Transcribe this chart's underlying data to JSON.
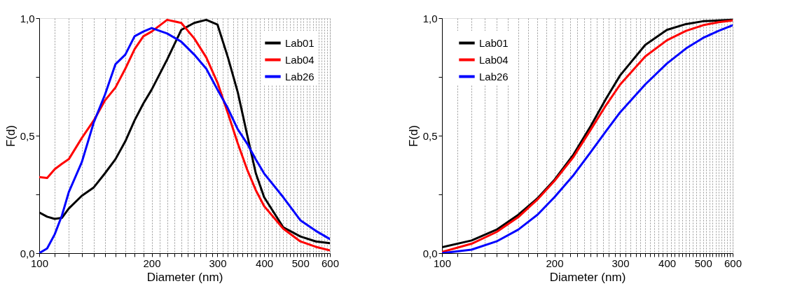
{
  "chart_data": [
    {
      "type": "line",
      "xlabel": "Diameter (nm)",
      "ylabel": "F(d)",
      "log": "x",
      "grid": "x",
      "legend": "top right",
      "marker": "none",
      "line_style": "solid",
      "xlim": [
        100,
        600
      ],
      "ylim": [
        0,
        1.0
      ],
      "xticks": [
        100,
        {
          "value": 110,
          "label": null
        },
        {
          "value": 120,
          "label": null
        },
        {
          "value": 130,
          "label": null
        },
        {
          "value": 140,
          "label": null
        },
        {
          "value": 150,
          "label": null
        },
        {
          "value": 160,
          "label": null
        },
        {
          "value": 170,
          "label": null
        },
        {
          "value": 180,
          "label": null
        },
        {
          "value": 190,
          "label": null
        },
        200,
        {
          "value": 210,
          "label": null
        },
        {
          "value": 220,
          "label": null
        },
        {
          "value": 230,
          "label": null
        },
        {
          "value": 240,
          "label": null
        },
        {
          "value": 250,
          "label": null
        },
        {
          "value": 260,
          "label": null
        },
        {
          "value": 270,
          "label": null
        },
        {
          "value": 280,
          "label": null
        },
        {
          "value": 290,
          "label": null
        },
        300,
        {
          "value": 310,
          "label": null
        },
        {
          "value": 320,
          "label": null
        },
        {
          "value": 330,
          "label": null
        },
        {
          "value": 340,
          "label": null
        },
        {
          "value": 350,
          "label": null
        },
        {
          "value": 360,
          "label": null
        },
        {
          "value": 370,
          "label": null
        },
        {
          "value": 380,
          "label": null
        },
        {
          "value": 390,
          "label": null
        },
        400,
        {
          "value": 410,
          "label": null
        },
        {
          "value": 420,
          "label": null
        },
        {
          "value": 430,
          "label": null
        },
        {
          "value": 440,
          "label": null
        },
        {
          "value": 450,
          "label": null
        },
        {
          "value": 460,
          "label": null
        },
        {
          "value": 470,
          "label": null
        },
        {
          "value": 480,
          "label": null
        },
        {
          "value": 490,
          "label": null
        },
        500,
        {
          "value": 510,
          "label": null
        },
        {
          "value": 520,
          "label": null
        },
        {
          "value": 530,
          "label": null
        },
        {
          "value": 540,
          "label": null
        },
        {
          "value": 550,
          "label": null
        },
        {
          "value": 560,
          "label": null
        },
        {
          "value": 570,
          "label": null
        },
        {
          "value": 580,
          "label": null
        },
        {
          "value": 590,
          "label": null
        },
        600
      ],
      "yticks": [
        {
          "value": 0,
          "label": "0,0"
        },
        {
          "value": 0.25,
          "label": null
        },
        {
          "value": 0.5,
          "label": "0,5"
        },
        {
          "value": 0.75,
          "label": null
        },
        {
          "value": 1.0,
          "label": "1,0"
        }
      ],
      "x": [
        100,
        105,
        110,
        115,
        120,
        130,
        140,
        150,
        160,
        170,
        180,
        190,
        200,
        220,
        240,
        260,
        280,
        300,
        320,
        340,
        360,
        380,
        400,
        450,
        500,
        550,
        600
      ],
      "series": [
        {
          "name": "Lab01",
          "color": "#000000",
          "values": [
            0.173,
            0.155,
            0.146,
            0.15,
            0.19,
            0.244,
            0.28,
            0.34,
            0.4,
            0.476,
            0.565,
            0.637,
            0.696,
            0.824,
            0.95,
            0.98,
            0.993,
            0.973,
            0.833,
            0.685,
            0.506,
            0.34,
            0.238,
            0.11,
            0.071,
            0.05,
            0.042
          ]
        },
        {
          "name": "Lab04",
          "color": "#ff0000",
          "values": [
            0.324,
            0.32,
            0.357,
            0.38,
            0.4,
            0.49,
            0.565,
            0.65,
            0.705,
            0.785,
            0.868,
            0.923,
            0.943,
            0.993,
            0.98,
            0.914,
            0.833,
            0.726,
            0.595,
            0.467,
            0.357,
            0.268,
            0.2,
            0.104,
            0.05,
            0.027,
            0.012
          ]
        },
        {
          "name": "Lab26",
          "color": "#0000ff",
          "values": [
            0.0,
            0.02,
            0.08,
            0.16,
            0.26,
            0.387,
            0.557,
            0.675,
            0.804,
            0.845,
            0.923,
            0.943,
            0.958,
            0.935,
            0.9,
            0.845,
            0.785,
            0.696,
            0.616,
            0.527,
            0.467,
            0.399,
            0.339,
            0.238,
            0.14,
            0.095,
            0.06
          ]
        }
      ]
    },
    {
      "type": "line",
      "xlabel": "Diameter (nm)",
      "ylabel": "F(d)",
      "log": "x",
      "grid": "x",
      "legend": "top left",
      "marker": "none",
      "line_style": "solid",
      "xlim": [
        100,
        600
      ],
      "ylim": [
        0,
        1.0
      ],
      "xticks": [
        100,
        {
          "value": 110,
          "label": null
        },
        {
          "value": 120,
          "label": null
        },
        {
          "value": 130,
          "label": null
        },
        {
          "value": 140,
          "label": null
        },
        {
          "value": 150,
          "label": null
        },
        {
          "value": 160,
          "label": null
        },
        {
          "value": 170,
          "label": null
        },
        {
          "value": 180,
          "label": null
        },
        {
          "value": 190,
          "label": null
        },
        200,
        {
          "value": 210,
          "label": null
        },
        {
          "value": 220,
          "label": null
        },
        {
          "value": 230,
          "label": null
        },
        {
          "value": 240,
          "label": null
        },
        {
          "value": 250,
          "label": null
        },
        {
          "value": 260,
          "label": null
        },
        {
          "value": 270,
          "label": null
        },
        {
          "value": 280,
          "label": null
        },
        {
          "value": 290,
          "label": null
        },
        300,
        {
          "value": 310,
          "label": null
        },
        {
          "value": 320,
          "label": null
        },
        {
          "value": 330,
          "label": null
        },
        {
          "value": 340,
          "label": null
        },
        {
          "value": 350,
          "label": null
        },
        {
          "value": 360,
          "label": null
        },
        {
          "value": 370,
          "label": null
        },
        {
          "value": 380,
          "label": null
        },
        {
          "value": 390,
          "label": null
        },
        400,
        {
          "value": 410,
          "label": null
        },
        {
          "value": 420,
          "label": null
        },
        {
          "value": 430,
          "label": null
        },
        {
          "value": 440,
          "label": null
        },
        {
          "value": 450,
          "label": null
        },
        {
          "value": 460,
          "label": null
        },
        {
          "value": 470,
          "label": null
        },
        {
          "value": 480,
          "label": null
        },
        {
          "value": 490,
          "label": null
        },
        500,
        {
          "value": 510,
          "label": null
        },
        {
          "value": 520,
          "label": null
        },
        {
          "value": 530,
          "label": null
        },
        {
          "value": 540,
          "label": null
        },
        {
          "value": 550,
          "label": null
        },
        {
          "value": 560,
          "label": null
        },
        {
          "value": 570,
          "label": null
        },
        {
          "value": 580,
          "label": null
        },
        {
          "value": 590,
          "label": null
        },
        600
      ],
      "yticks": [
        {
          "value": 0,
          "label": "0,0"
        },
        {
          "value": 0.25,
          "label": null
        },
        {
          "value": 0.5,
          "label": "0,5"
        },
        {
          "value": 0.75,
          "label": null
        },
        {
          "value": 1.0,
          "label": "1,0"
        }
      ],
      "x": [
        100,
        120,
        140,
        160,
        180,
        200,
        225,
        250,
        275,
        300,
        350,
        400,
        450,
        500,
        550,
        600
      ],
      "series": [
        {
          "name": "Lab01",
          "color": "#000000",
          "values": [
            0.025,
            0.054,
            0.1,
            0.163,
            0.233,
            0.312,
            0.42,
            0.54,
            0.658,
            0.757,
            0.886,
            0.95,
            0.975,
            0.987,
            0.99,
            0.993
          ]
        },
        {
          "name": "Lab04",
          "color": "#ff0000",
          "values": [
            0.005,
            0.04,
            0.09,
            0.153,
            0.228,
            0.307,
            0.41,
            0.525,
            0.63,
            0.718,
            0.837,
            0.906,
            0.946,
            0.97,
            0.983,
            0.99
          ]
        },
        {
          "name": "Lab26",
          "color": "#0000ff",
          "values": [
            0.0,
            0.015,
            0.05,
            0.1,
            0.163,
            0.238,
            0.332,
            0.43,
            0.52,
            0.6,
            0.718,
            0.807,
            0.871,
            0.916,
            0.946,
            0.97
          ]
        }
      ]
    }
  ]
}
